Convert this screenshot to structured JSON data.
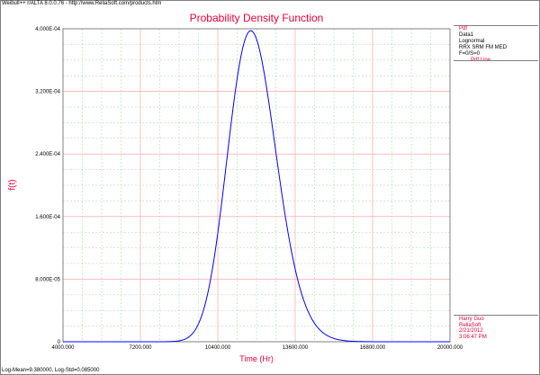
{
  "header_caption": "Weibull++ r/ALTA 8.0.0.76 - http://www.ReliaSoft.com/products.htm",
  "footer_caption": "Log-Mean=9.380000, Log-Std=0.085000",
  "legend": {
    "header": "Pdf",
    "lines": [
      "Data1",
      "Lognormal",
      "RRX SRM FM MED",
      "F=0/S=0"
    ],
    "series_label": "Pdf Line",
    "footer": [
      "Harry Guo",
      "ReliaSoft",
      "2/21/2012",
      "3:06:47 PM"
    ]
  },
  "colors": {
    "curve": "#0000ff",
    "text_accent": "#e8003c",
    "grid_major": "#ff9999",
    "grid_minor": "#99dd99"
  },
  "chart_data": {
    "type": "line",
    "title": "Probability Density Function",
    "xlabel": "Time (Hr)",
    "ylabel": "f(t)",
    "xlim": [
      4000,
      20000
    ],
    "ylim": [
      0,
      0.0004
    ],
    "x_ticks": [
      4000,
      7200,
      10400,
      13600,
      16800,
      20000
    ],
    "x_tick_labels": [
      "4000.000",
      "7200.000",
      "10400.000",
      "13600.000",
      "16800.000",
      "20000.000"
    ],
    "y_ticks": [
      0,
      8e-05,
      0.00016,
      0.00024,
      0.00032,
      0.0004
    ],
    "y_tick_labels": [
      "0",
      "8.000E-05",
      "1.600E-04",
      "2.400E-04",
      "3.200E-04",
      "4.000E-04"
    ],
    "grid": true,
    "legend_position": "right",
    "series": [
      {
        "name": "Pdf Line",
        "distribution": "lognormal",
        "log_mean": 9.38,
        "log_std": 0.085,
        "x": [
          8400,
          9000,
          9600,
          10000,
          10400,
          10800,
          11200,
          11500,
          11800,
          12100,
          12400,
          12800,
          13200,
          13600,
          14000,
          14500,
          15000,
          15500,
          16000
        ],
        "y": [
          3e-07,
          5.1e-06,
          3.65e-05,
          9.44e-05,
          0.0001872,
          0.0002922,
          0.0003692,
          0.0003946,
          0.0003881,
          0.0003548,
          0.0003031,
          0.0002261,
          0.0001527,
          9.44e-05,
          5.38e-05,
          2.33e-05,
          9e-06,
          3.1e-06,
          1e-06
        ]
      }
    ]
  }
}
